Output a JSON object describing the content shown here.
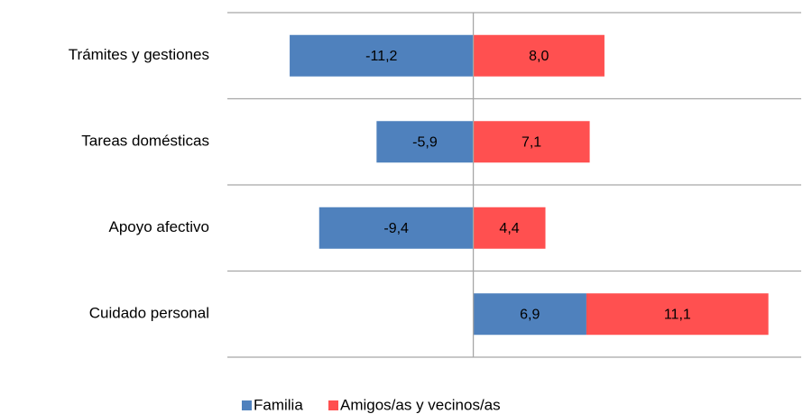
{
  "chart_data": {
    "type": "bar",
    "orientation": "horizontal",
    "stacked": true,
    "categories": [
      "Trámites y gestiones",
      "Tareas domésticas",
      "Apoyo afectivo",
      "Cuidado personal"
    ],
    "series": [
      {
        "name": "Familia",
        "color": "#4f81bd",
        "values": [
          -11.2,
          -5.9,
          -9.4,
          6.9
        ],
        "value_labels": [
          "-11,2",
          "-5,9",
          "-9,4",
          "6,9"
        ]
      },
      {
        "name": "Amigos/as y vecinos/as",
        "color": "#ff5050",
        "values": [
          8.0,
          7.1,
          4.4,
          11.1
        ],
        "value_labels": [
          "8,0",
          "7,1",
          "4,4",
          "11,1"
        ]
      }
    ],
    "xlim": [
      -15,
      20
    ],
    "legend": "bottom"
  }
}
